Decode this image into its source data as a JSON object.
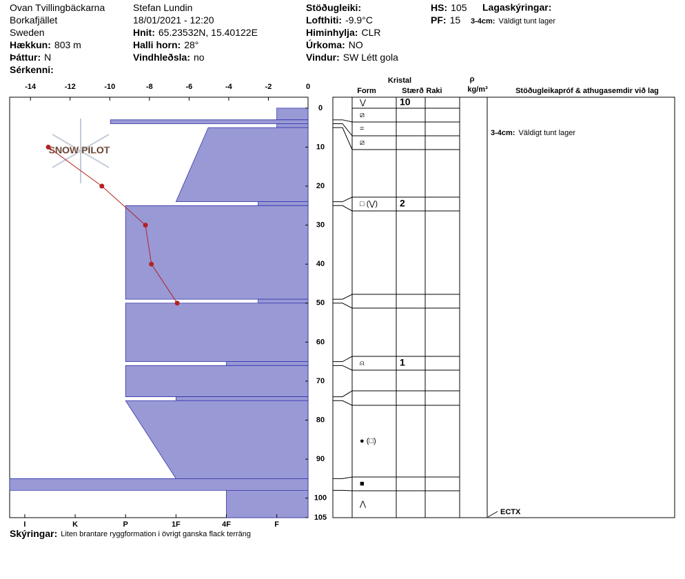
{
  "header": {
    "col1": [
      {
        "text": "Ovan Tvillingbäckarna"
      },
      {
        "text": "Borkafjället"
      },
      {
        "text": "Sweden"
      },
      {
        "label": "Hækkun:",
        "value": "803 m"
      },
      {
        "label": "Þáttur:",
        "value": "N"
      },
      {
        "label": "Sérkenni:"
      }
    ],
    "col2": [
      {
        "text": "Stefan Lundin"
      },
      {
        "text": "18/01/2021 - 12:20"
      },
      {
        "label": "Hnit:",
        "value": "65.23532N, 15.40122E"
      },
      {
        "label": "Halli horn:",
        "value": "28°"
      },
      {
        "label": "Vindhleðsla:",
        "value": "no"
      }
    ],
    "col3": [
      {
        "label": "Stöðugleiki:"
      },
      {
        "label": "Lofthiti:",
        "value": "-9.9°C"
      },
      {
        "label": "Himinhylja:",
        "value": "CLR"
      },
      {
        "label": "Úrkoma:",
        "value": "NO"
      },
      {
        "label": "Vindur:",
        "value": "SW Létt gola"
      }
    ],
    "col4": [
      {
        "label": "HS:",
        "value": "105"
      },
      {
        "label": "PF:",
        "value": "15"
      }
    ],
    "layer_notes_title": "Lagaskýringar:",
    "layer_notes": [
      {
        "label": "3-4cm:",
        "value": "Väldigt tunt lager"
      }
    ]
  },
  "chart_data": {
    "type": "snow-profile",
    "watermark": "SNOW PILOT",
    "xlim": [
      -15.05,
      0
    ],
    "xticks": [
      -14,
      -12,
      -10,
      -8,
      -6,
      -4,
      -2,
      0
    ],
    "ylim": [
      -2.8,
      105
    ],
    "yticks": [
      0,
      10,
      20,
      30,
      40,
      50,
      60,
      70,
      80,
      90,
      100,
      105
    ],
    "hardness_lim": [
      6.3,
      0.38
    ],
    "hardness_ticks": [
      {
        "value": 6,
        "label": "I"
      },
      {
        "value": 5,
        "label": "K"
      },
      {
        "value": 4,
        "label": "P"
      },
      {
        "value": 3,
        "label": "1F"
      },
      {
        "value": 2,
        "label": "4F"
      },
      {
        "value": 1,
        "label": "F"
      }
    ],
    "color": "#9999d6",
    "temperature": {
      "color": "#b22222",
      "depth": [
        10,
        20,
        30,
        40,
        50
      ],
      "values": [
        -13.1,
        -10.4,
        -8.2,
        -7.9,
        -6.6
      ]
    },
    "layers": {
      "top": [
        0,
        3,
        4,
        5,
        24,
        25,
        49,
        50,
        65,
        66,
        74,
        75,
        95,
        98
      ],
      "bottom": [
        3,
        4,
        5,
        24,
        25,
        49,
        50,
        65,
        66,
        74,
        75,
        95,
        98,
        105
      ],
      "hardness_top": [
        1,
        4.3,
        1,
        2.36,
        1.37,
        4,
        1.37,
        4,
        2,
        4,
        3,
        4,
        6.3,
        2
      ],
      "hardness_bottom": [
        1,
        4.3,
        1,
        3,
        1.37,
        4,
        1.37,
        4,
        2,
        4,
        3,
        3,
        6.3,
        2
      ]
    }
  },
  "table": {
    "headers": {
      "crystal": "Kristal",
      "form": "Form",
      "size": "Stærð",
      "moisture": "Raki",
      "rho": "ρ",
      "density_unit": "kg/m³",
      "comments": "Stöðugleikapróf & athugasemdir við lag"
    },
    "rows": [
      {
        "form": "⋁",
        "size": "10"
      },
      {
        "form": "⧄"
      },
      {
        "form": "="
      },
      {
        "form": "⧄"
      },
      {},
      {
        "form": "□ (⋁)",
        "size": "2"
      },
      {},
      {},
      {},
      {
        "form": "⍝",
        "size": "1"
      },
      {},
      {},
      {
        "form": "● (□)"
      },
      {
        "form": "■"
      },
      {
        "form": "⋀"
      }
    ],
    "comments": [
      {
        "label": "3-4cm:",
        "value": "Väldigt tunt lager"
      }
    ],
    "test": "ECTX"
  },
  "footer": {
    "label": "Skýringar:",
    "value": "Liten brantare ryggformation i övrigt ganska flack terräng"
  }
}
